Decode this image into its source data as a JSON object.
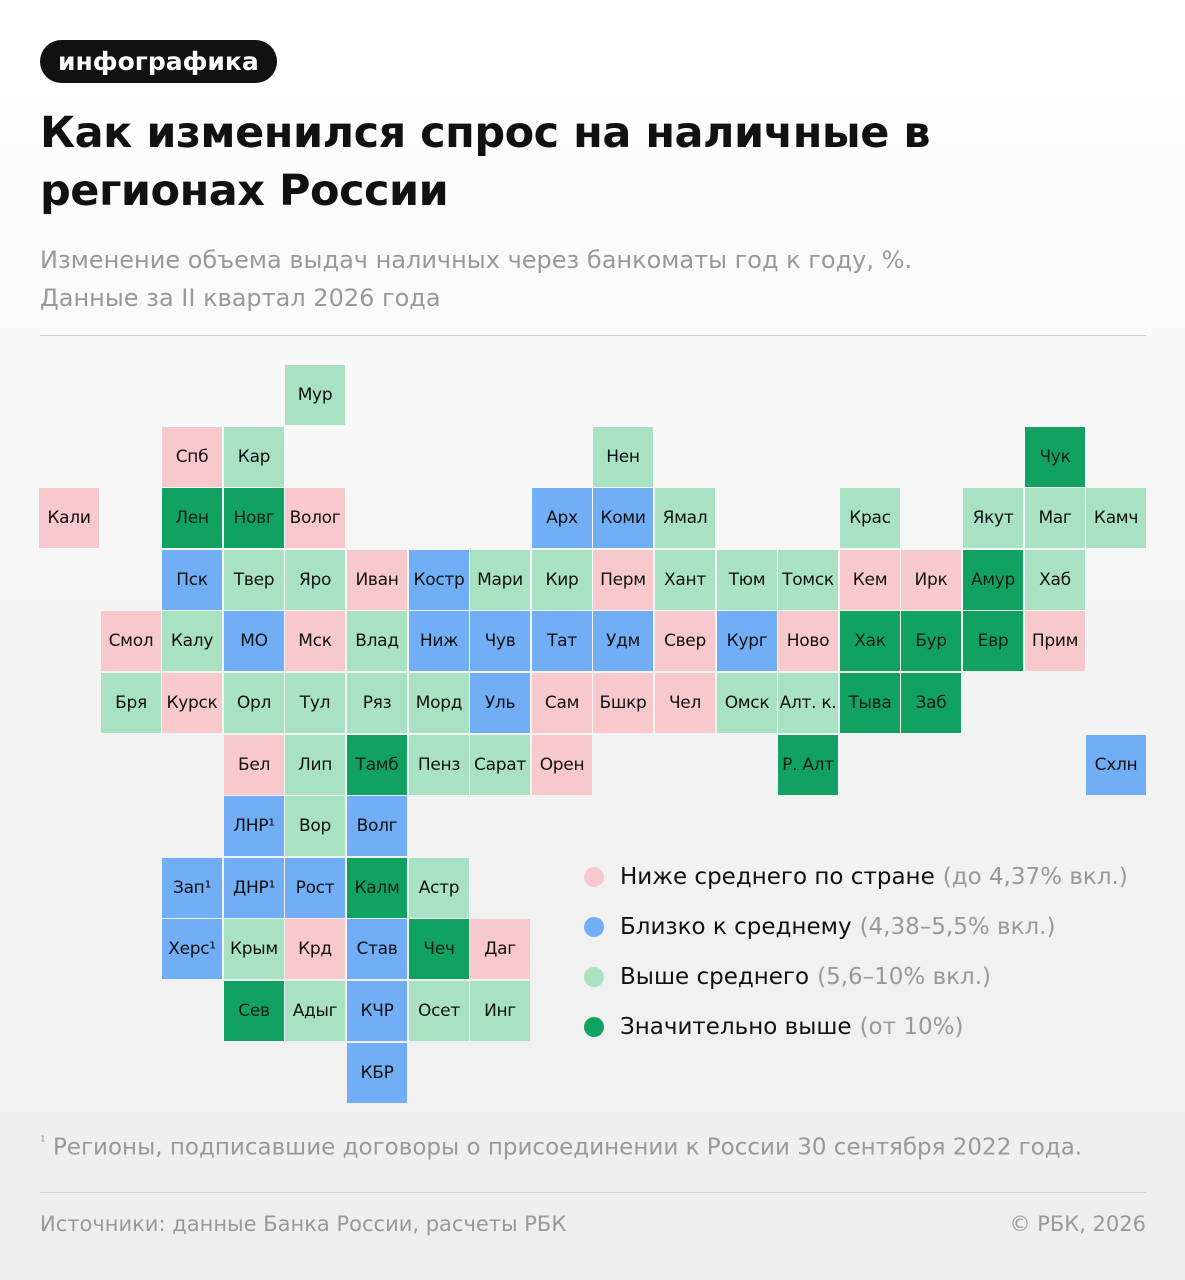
{
  "badge": "инфографика",
  "title": "Как изменился спрос на наличные в регионах России",
  "subtitle_line1": "Изменение объема выдач наличных через банкоматы год к году, %.",
  "subtitle_line2": "Данные за II квартал 2026 года",
  "colors": {
    "c1": "#f8c9cc",
    "c2": "#72aef5",
    "c3": "#a9e2c3",
    "c4": "#11a262"
  },
  "legend": [
    {
      "cat": "c1",
      "label": "Ниже среднего по стране",
      "range": "(до 4,37% вкл.)"
    },
    {
      "cat": "c2",
      "label": "Близко к среднему",
      "range": "(4,38–5,5% вкл.)"
    },
    {
      "cat": "c3",
      "label": "Выше среднего",
      "range": "(5,6–10% вкл.)"
    },
    {
      "cat": "c4",
      "label": "Значительно выше",
      "range": "(от 10%)"
    }
  ],
  "regions": [
    {
      "n": "Мур",
      "c": "c3"
    },
    {
      "n": "Спб",
      "c": "c1"
    },
    {
      "n": "Кар",
      "c": "c3"
    },
    {
      "n": "Нен",
      "c": "c3"
    },
    {
      "n": "Чук",
      "c": "c4"
    },
    {
      "n": "Кали",
      "c": "c1"
    },
    {
      "n": "Лен",
      "c": "c4"
    },
    {
      "n": "Новг",
      "c": "c4"
    },
    {
      "n": "Волог",
      "c": "c1"
    },
    {
      "n": "Арх",
      "c": "c2"
    },
    {
      "n": "Коми",
      "c": "c2"
    },
    {
      "n": "Ямал",
      "c": "c3"
    },
    {
      "n": "Крас",
      "c": "c3"
    },
    {
      "n": "Якут",
      "c": "c3"
    },
    {
      "n": "Маг",
      "c": "c3"
    },
    {
      "n": "Камч",
      "c": "c3"
    },
    {
      "n": "Пск",
      "c": "c2"
    },
    {
      "n": "Твер",
      "c": "c3"
    },
    {
      "n": "Яро",
      "c": "c3"
    },
    {
      "n": "Иван",
      "c": "c1"
    },
    {
      "n": "Костр",
      "c": "c2"
    },
    {
      "n": "Мари",
      "c": "c3"
    },
    {
      "n": "Кир",
      "c": "c3"
    },
    {
      "n": "Перм",
      "c": "c1"
    },
    {
      "n": "Хант",
      "c": "c3"
    },
    {
      "n": "Тюм",
      "c": "c3"
    },
    {
      "n": "Томск",
      "c": "c3"
    },
    {
      "n": "Кем",
      "c": "c1"
    },
    {
      "n": "Ирк",
      "c": "c1"
    },
    {
      "n": "Амур",
      "c": "c4"
    },
    {
      "n": "Хаб",
      "c": "c3"
    },
    {
      "n": "Смол",
      "c": "c1"
    },
    {
      "n": "Калу",
      "c": "c3"
    },
    {
      "n": "МО",
      "c": "c2"
    },
    {
      "n": "Мск",
      "c": "c1"
    },
    {
      "n": "Влад",
      "c": "c3"
    },
    {
      "n": "Ниж",
      "c": "c2"
    },
    {
      "n": "Чув",
      "c": "c2"
    },
    {
      "n": "Тат",
      "c": "c2"
    },
    {
      "n": "Удм",
      "c": "c2"
    },
    {
      "n": "Свер",
      "c": "c1"
    },
    {
      "n": "Кург",
      "c": "c2"
    },
    {
      "n": "Ново",
      "c": "c1"
    },
    {
      "n": "Хак",
      "c": "c4"
    },
    {
      "n": "Бур",
      "c": "c4"
    },
    {
      "n": "Евр",
      "c": "c4"
    },
    {
      "n": "Прим",
      "c": "c1"
    },
    {
      "n": "Бря",
      "c": "c3"
    },
    {
      "n": "Курск",
      "c": "c1"
    },
    {
      "n": "Орл",
      "c": "c3"
    },
    {
      "n": "Тул",
      "c": "c3"
    },
    {
      "n": "Ряз",
      "c": "c3"
    },
    {
      "n": "Морд",
      "c": "c3"
    },
    {
      "n": "Уль",
      "c": "c2"
    },
    {
      "n": "Сам",
      "c": "c1"
    },
    {
      "n": "Бшкр",
      "c": "c1"
    },
    {
      "n": "Чел",
      "c": "c1"
    },
    {
      "n": "Омск",
      "c": "c3"
    },
    {
      "n": "Алт. к.",
      "c": "c3"
    },
    {
      "n": "Тыва",
      "c": "c4"
    },
    {
      "n": "Заб",
      "c": "c4"
    },
    {
      "n": "Бел",
      "c": "c1"
    },
    {
      "n": "Лип",
      "c": "c3"
    },
    {
      "n": "Тамб",
      "c": "c4"
    },
    {
      "n": "Пенз",
      "c": "c3"
    },
    {
      "n": "Сарат",
      "c": "c3"
    },
    {
      "n": "Орен",
      "c": "c1"
    },
    {
      "n": "Р. Алт",
      "c": "c4"
    },
    {
      "n": "Схлн",
      "c": "c2"
    },
    {
      "n": "ЛНР¹",
      "c": "c2"
    },
    {
      "n": "Вор",
      "c": "c3"
    },
    {
      "n": "Волг",
      "c": "c2"
    },
    {
      "n": "Зап¹",
      "c": "c2"
    },
    {
      "n": "ДНР¹",
      "c": "c2"
    },
    {
      "n": "Рост",
      "c": "c2"
    },
    {
      "n": "Калм",
      "c": "c4"
    },
    {
      "n": "Астр",
      "c": "c3"
    },
    {
      "n": "Херс¹",
      "c": "c2"
    },
    {
      "n": "Крым",
      "c": "c3"
    },
    {
      "n": "Крд",
      "c": "c1"
    },
    {
      "n": "Став",
      "c": "c2"
    },
    {
      "n": "Чеч",
      "c": "c4"
    },
    {
      "n": "Даг",
      "c": "c1"
    },
    {
      "n": "Сев",
      "c": "c4"
    },
    {
      "n": "Адыг",
      "c": "c3"
    },
    {
      "n": "КЧР",
      "c": "c2"
    },
    {
      "n": "Осет",
      "c": "c3"
    },
    {
      "n": "Инг",
      "c": "c3"
    },
    {
      "n": "КБР",
      "c": "c2"
    }
  ],
  "footnote_mark": "¹",
  "footnote_text": "Регионы, подписавшие договоры о присоединении к России 30 сентября 2022 года.",
  "source": "Источники: данные Банка России, расчеты РБК",
  "copyright": "© РБК, 2026"
}
